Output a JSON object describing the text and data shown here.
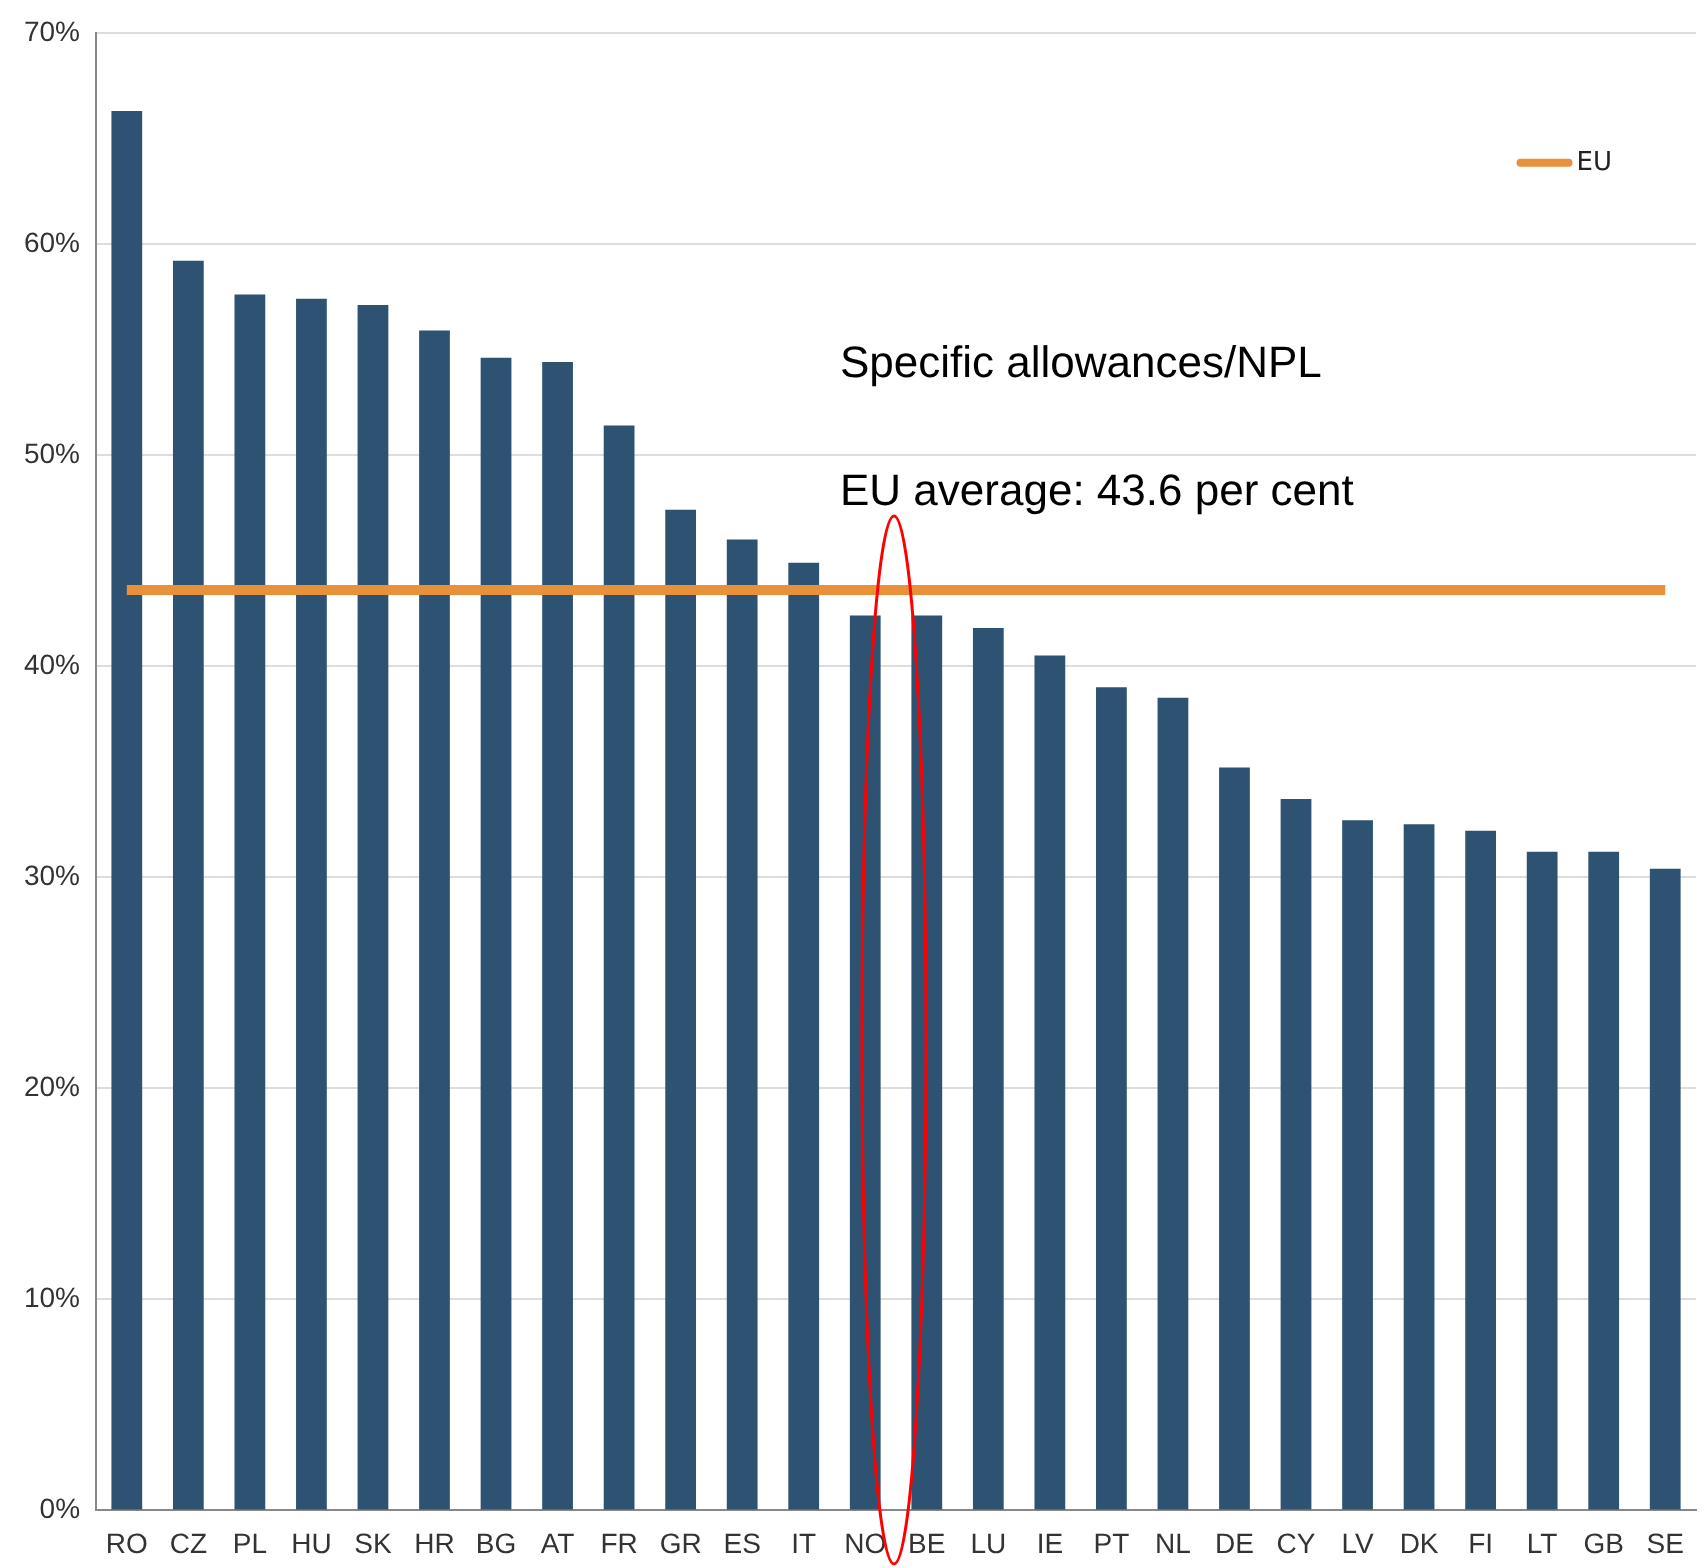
{
  "chart_data": {
    "type": "bar",
    "categories": [
      "RO",
      "CZ",
      "PL",
      "HU",
      "SK",
      "HR",
      "BG",
      "AT",
      "FR",
      "GR",
      "ES",
      "IT",
      "NO",
      "BE",
      "LU",
      "IE",
      "PT",
      "NL",
      "DE",
      "CY",
      "LV",
      "DK",
      "FI",
      "LT",
      "GB",
      "SE"
    ],
    "series": [
      {
        "color": "#2e5372",
        "values": [
          66.3,
          59.2,
          57.6,
          57.4,
          57.1,
          55.9,
          54.6,
          54.4,
          51.4,
          47.4,
          46.0,
          44.9,
          42.4,
          42.4,
          41.8,
          40.5,
          39.0,
          38.5,
          35.2,
          33.7,
          32.7,
          32.5,
          32.2,
          31.2,
          31.2,
          30.4
        ]
      },
      {
        "type": "line",
        "name": "EU",
        "color": "#e8903a",
        "values": [
          43.6,
          43.6,
          43.6,
          43.6,
          43.6,
          43.6,
          43.6,
          43.6,
          43.6,
          43.6,
          43.6,
          43.6,
          43.6,
          43.6,
          43.6,
          43.6,
          43.6,
          43.6,
          43.6,
          43.6,
          43.6,
          43.6,
          43.6,
          43.6,
          43.6,
          43.6
        ]
      }
    ],
    "ylim": [
      0,
      70
    ],
    "yticks": [
      {
        "value": 0,
        "label": "0%"
      },
      {
        "value": 10,
        "label": "10%"
      },
      {
        "value": 20,
        "label": "20%"
      },
      {
        "value": 30,
        "label": "30%"
      },
      {
        "value": 40,
        "label": "40%"
      },
      {
        "value": 50,
        "label": "50%"
      },
      {
        "value": 60,
        "label": "60%"
      },
      {
        "value": 70,
        "label": "70%"
      }
    ],
    "annotations": [
      "Specific allowances/NPL",
      "EU average: 43.6 per cent"
    ],
    "grid": "y",
    "legend": "top right",
    "marker": "none"
  }
}
